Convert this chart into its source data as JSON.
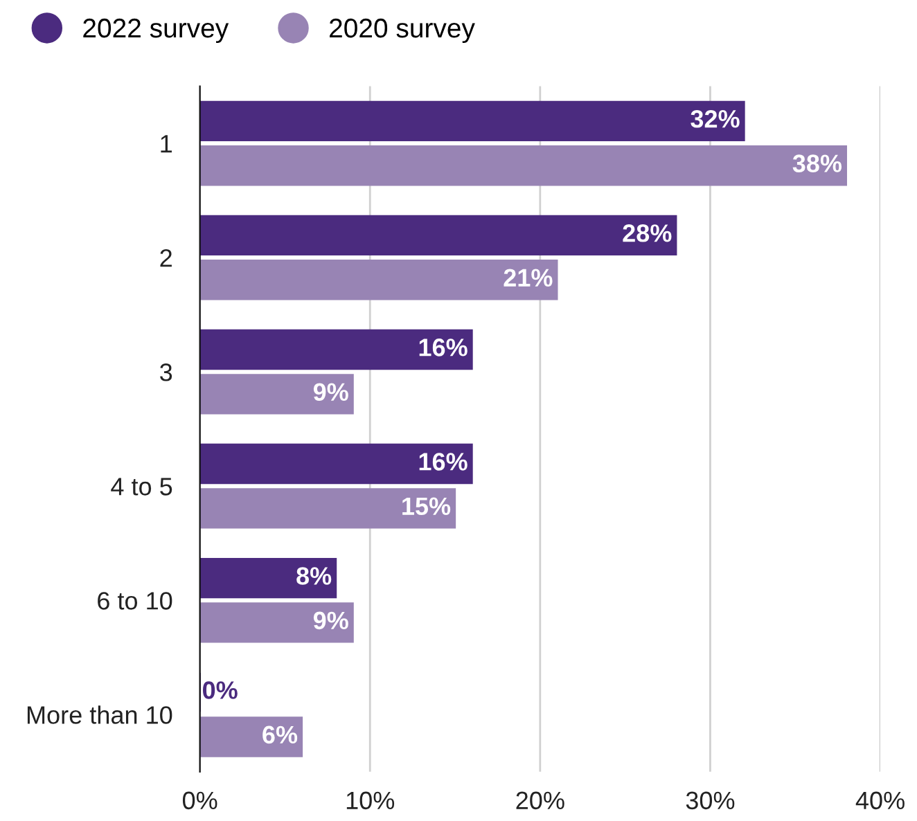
{
  "chart_data": {
    "type": "bar",
    "orientation": "horizontal",
    "categories": [
      "1",
      "2",
      "3",
      "4 to 5",
      "6 to 10",
      "More than 10"
    ],
    "series": [
      {
        "name": "2022 survey",
        "color": "#4b2b7f",
        "values": [
          32,
          28,
          16,
          16,
          8,
          0
        ],
        "value_labels": [
          "32%",
          "28%",
          "16%",
          "16%",
          "8%",
          "0%"
        ]
      },
      {
        "name": "2020 survey",
        "color": "#9884b4",
        "values": [
          38,
          21,
          9,
          15,
          9,
          6
        ],
        "value_labels": [
          "38%",
          "21%",
          "9%",
          "15%",
          "9%",
          "6%"
        ]
      }
    ],
    "xlim": [
      0,
      40
    ],
    "xticks": [
      {
        "value": 0,
        "label": "0%"
      },
      {
        "value": 10,
        "label": "10%"
      },
      {
        "value": 20,
        "label": "20%"
      },
      {
        "value": 30,
        "label": "30%"
      },
      {
        "value": 40,
        "label": "40%"
      }
    ],
    "grid": "x",
    "legend": "top left"
  }
}
